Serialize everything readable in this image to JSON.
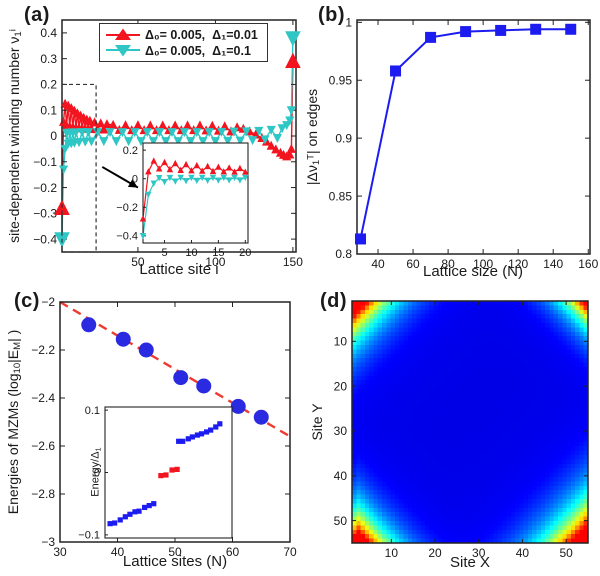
{
  "colors": {
    "red": "#f2141e",
    "cyan": "#2ec7c5",
    "blue": "#1c1cf0",
    "circle_blue": "#2a2ae0",
    "trend_red": "#ee3b30",
    "axis": "#222222",
    "text": "#1a1a1a"
  },
  "panels": {
    "a": {
      "label": "(a)",
      "xlabel": "Lattice site i",
      "ylabel": {
        "p1": "site-dependent winding number ν",
        "sub": "1",
        "sup": "i"
      },
      "legend": [
        {
          "text": "Δ₀= 0.005,  Δ₁=0.01",
          "color_key": "red",
          "marker": "triangle-up"
        },
        {
          "text": "Δ₀= 0.005,  Δ₁=0.1",
          "color_key": "cyan",
          "marker": "triangle-down"
        }
      ]
    },
    "b": {
      "label": "(b)",
      "xlabel": "Lattice size (N)",
      "ylabel": {
        "p1": "|Δν",
        "sub": "1",
        "sup": "T",
        "p2": "| on edges"
      }
    },
    "c": {
      "label": "(c)",
      "xlabel": "Lattice sites (N)",
      "ylabel": {
        "p1": "Energies of MZMs (log",
        "sub1": "10",
        "p2": "|E",
        "sub2": "M",
        "p3": "| )"
      },
      "inset_ylabel": {
        "p1": "Energy/Δ",
        "sub": "1"
      }
    },
    "d": {
      "label": "(d)",
      "xlabel": "Site X",
      "ylabel": "Site Y"
    }
  },
  "chart_data": [
    {
      "id": "a_main",
      "type": "line",
      "xlabel": "Lattice site i",
      "ylabel": "site-dependent winding number nu_1^i",
      "xlim": [
        1,
        152
      ],
      "ylim": [
        -0.45,
        0.45
      ],
      "xticks": [
        50,
        100,
        150
      ],
      "xtick_labels": [
        "50",
        "100",
        "150"
      ],
      "yticks": [
        -0.4,
        -0.3,
        -0.2,
        -0.1,
        0,
        0.1,
        0.2,
        0.3,
        0.4
      ],
      "ytick_labels": [
        "−0.4",
        "−0.3",
        "−0.2",
        "−0.1",
        "0",
        "0.1",
        "0.2",
        "0.3",
        "0.4"
      ],
      "series": [
        {
          "name": "Δ₀= 0.005, Δ₁=0.01",
          "color": "#f2141e",
          "marker": "triangle-up",
          "emphasize_ends": true,
          "x": [
            1,
            2,
            3,
            4,
            5,
            6,
            7,
            8,
            9,
            10,
            11,
            12,
            13,
            14,
            15,
            16,
            17,
            18,
            19,
            20,
            22,
            24,
            26,
            28,
            30,
            34,
            38,
            42,
            46,
            50,
            54,
            58,
            62,
            66,
            70,
            74,
            78,
            82,
            86,
            90,
            94,
            98,
            102,
            106,
            110,
            114,
            118,
            122,
            126,
            130,
            133,
            136,
            139,
            142,
            144,
            146,
            148,
            149,
            150
          ],
          "y": [
            -0.28,
            0.055,
            0.125,
            0.04,
            0.118,
            0.036,
            0.108,
            0.034,
            0.098,
            0.032,
            0.088,
            0.031,
            0.079,
            0.03,
            0.071,
            0.029,
            0.064,
            0.028,
            0.059,
            0.027,
            0.053,
            0.026,
            0.049,
            0.025,
            0.046,
            0.043,
            0.024,
            0.042,
            0.023,
            0.042,
            0.023,
            0.041,
            0.023,
            0.041,
            0.023,
            0.041,
            0.023,
            0.041,
            0.023,
            0.041,
            0.022,
            0.04,
            0.021,
            0.038,
            0.018,
            0.034,
            0.028,
            0.018,
            0.006,
            -0.008,
            -0.022,
            -0.038,
            -0.052,
            -0.065,
            -0.073,
            -0.079,
            -0.072,
            -0.05,
            0.29
          ]
        },
        {
          "name": "Δ₀= 0.005, Δ₁=0.1",
          "color": "#2ec7c5",
          "marker": "triangle-down",
          "emphasize_ends": true,
          "x": [
            1,
            2,
            3,
            4,
            5,
            6,
            7,
            8,
            9,
            10,
            12,
            14,
            16,
            18,
            20,
            24,
            28,
            32,
            36,
            40,
            44,
            48,
            52,
            56,
            60,
            64,
            68,
            72,
            76,
            80,
            84,
            88,
            92,
            96,
            100,
            104,
            108,
            112,
            116,
            120,
            124,
            128,
            132,
            136,
            140,
            143,
            146,
            148,
            149,
            150
          ],
          "y": [
            -0.4,
            -0.13,
            -0.05,
            0.012,
            -0.03,
            0.013,
            -0.028,
            0.014,
            -0.026,
            0.014,
            -0.024,
            0.015,
            -0.022,
            0.015,
            -0.021,
            0.015,
            -0.02,
            0.015,
            -0.02,
            0.015,
            -0.02,
            0.015,
            -0.02,
            0.015,
            -0.02,
            0.015,
            -0.02,
            0.015,
            -0.02,
            0.015,
            -0.02,
            0.015,
            -0.02,
            0.015,
            -0.02,
            0.016,
            -0.019,
            0.017,
            -0.018,
            0.018,
            -0.016,
            0.02,
            -0.013,
            0.024,
            -0.008,
            0.03,
            0.042,
            0.06,
            0.1,
            0.38
          ]
        }
      ],
      "annotations": {
        "dash_rect": {
          "x0": 1,
          "x1": 23,
          "y0": -0.45,
          "y1": 0.2
        },
        "arrow": {
          "x1": 27,
          "y1": -0.12,
          "x2": 50,
          "y2": -0.2
        }
      }
    },
    {
      "id": "a_inset",
      "type": "line",
      "xlim": [
        1,
        20.5
      ],
      "ylim": [
        -0.45,
        0.25
      ],
      "xticks": [
        5,
        10,
        15,
        20
      ],
      "xtick_labels": [
        "5",
        "10",
        "15",
        "20"
      ],
      "yticks": [
        -0.4,
        -0.2,
        0,
        0.2
      ],
      "ytick_labels": [
        "−0.4",
        "−0.2",
        "0",
        "0.2"
      ],
      "series": [
        {
          "name": "Δ₀= 0.005, Δ₁=0.01 (zoom)",
          "color": "#f2141e",
          "marker": "triangle-up",
          "x": [
            1,
            2,
            3,
            4,
            5,
            6,
            7,
            8,
            9,
            10,
            11,
            12,
            13,
            14,
            15,
            16,
            17,
            18,
            19,
            20
          ],
          "y": [
            -0.28,
            0.05,
            0.125,
            0.07,
            0.115,
            0.065,
            0.107,
            0.06,
            0.1,
            0.057,
            0.093,
            0.054,
            0.087,
            0.052,
            0.082,
            0.05,
            0.077,
            0.048,
            0.073,
            0.047
          ]
        },
        {
          "name": "Δ₀= 0.005, Δ₁=0.1 (zoom)",
          "color": "#2ec7c5",
          "marker": "triangle-down",
          "x": [
            1,
            2,
            3,
            4,
            5,
            6,
            7,
            8,
            9,
            10,
            11,
            12,
            13,
            14,
            15,
            16,
            17,
            18,
            19,
            20
          ],
          "y": [
            -0.4,
            -0.11,
            -0.032,
            0.006,
            -0.022,
            0.007,
            -0.018,
            0.008,
            -0.015,
            0.008,
            -0.013,
            0.008,
            -0.012,
            0.008,
            -0.011,
            0.008,
            -0.01,
            0.008,
            -0.01,
            0.008
          ]
        }
      ]
    },
    {
      "id": "b",
      "type": "line",
      "xlabel": "Lattice size (N)",
      "ylabel": "|Δν₁ᵀ| on edges",
      "xlim": [
        28,
        161
      ],
      "ylim": [
        0.8,
        1.002
      ],
      "xticks": [
        40,
        60,
        80,
        100,
        120,
        140,
        160
      ],
      "xtick_labels": [
        "40",
        "60",
        "80",
        "100",
        "120",
        "140",
        "160"
      ],
      "yticks": [
        0.8,
        0.85,
        0.9,
        0.95,
        1
      ],
      "ytick_labels": [
        "0.8",
        "0.85",
        "0.9",
        "0.95",
        "1"
      ],
      "series": [
        {
          "name": "|Δν₁ᵀ| on edges",
          "color": "#1c1cf0",
          "marker": "square",
          "x": [
            30,
            50,
            70,
            90,
            110,
            130,
            150
          ],
          "y": [
            0.813,
            0.958,
            0.987,
            0.992,
            0.993,
            0.994,
            0.994
          ]
        }
      ]
    },
    {
      "id": "c",
      "type": "scatter",
      "xlabel": "Lattice sites (N)",
      "ylabel": "Energies of MZMs (log10|EM| )",
      "xlim": [
        30,
        70
      ],
      "ylim": [
        -3,
        -2
      ],
      "xticks": [
        30,
        40,
        50,
        60,
        70
      ],
      "xtick_labels": [
        "30",
        "40",
        "50",
        "60",
        "70"
      ],
      "yticks": [
        -3,
        -2.8,
        -2.6,
        -2.4,
        -2.2,
        -2
      ],
      "ytick_labels": [
        "−3",
        "−2.8",
        "−2.6",
        "−2.4",
        "−2.2",
        "−2"
      ],
      "series": [
        {
          "name": "MZM energies",
          "color": "#2a2ae0",
          "marker": "circle",
          "size": 7.5,
          "x": [
            35,
            41,
            45,
            51,
            55,
            61,
            65
          ],
          "y": [
            -2.095,
            -2.155,
            -2.2,
            -2.315,
            -2.35,
            -2.435,
            -2.48
          ]
        }
      ],
      "trend_line": {
        "color": "#ee3b30",
        "style": "dashed",
        "x": [
          30,
          70
        ],
        "y": [
          -2.0,
          -2.56
        ]
      }
    },
    {
      "id": "c_inset",
      "type": "scatter",
      "ylabel": "Energy/Δ₁",
      "xlim": [
        0,
        25
      ],
      "ylim": [
        -0.105,
        0.105
      ],
      "xticks": [],
      "yticks": [
        -0.1,
        0,
        0.1
      ],
      "ytick_labels": [
        "−0.1",
        "0",
        "0.1"
      ],
      "series": [
        {
          "name": "bulk states",
          "color": "#1c1cf0",
          "marker": "square",
          "size": 2.6,
          "x": [
            1,
            1.9,
            3,
            4,
            4.9,
            5.9,
            6.7,
            7.8,
            8.7,
            9.6,
            14.5,
            15.3,
            16.4,
            17.2,
            18.2,
            19,
            20,
            20.8,
            21.8,
            22.6
          ],
          "y": [
            -0.082,
            -0.081,
            -0.076,
            -0.071,
            -0.067,
            -0.063,
            -0.062,
            -0.056,
            -0.053,
            -0.05,
            0.05,
            0.05,
            0.054,
            0.057,
            0.06,
            0.062,
            0.065,
            0.068,
            0.073,
            0.078
          ]
        },
        {
          "name": "Majorana zero modes",
          "color": "#f2141e",
          "marker": "square",
          "size": 2.6,
          "x": [
            11,
            12,
            13.2,
            14.2
          ],
          "y": [
            -0.005,
            -0.004,
            0.004,
            0.005
          ]
        }
      ]
    },
    {
      "id": "d",
      "type": "heatmap",
      "xlabel": "Site X",
      "ylabel": "Site Y",
      "xlim": [
        1,
        55
      ],
      "ylim": [
        1,
        55
      ],
      "y_reversed": true,
      "xticks": [
        10,
        20,
        30,
        40,
        50
      ],
      "xtick_labels": [
        "10",
        "20",
        "30",
        "40",
        "50"
      ],
      "yticks": [
        10,
        20,
        30,
        40,
        50
      ],
      "ytick_labels": [
        "10",
        "20",
        "30",
        "40",
        "50"
      ],
      "grid_size": [
        55,
        55
      ],
      "colormap": "jet",
      "description": "Probability density of Majorana zero modes localized at the four corners of the lattice; blue bulk, red/yellow corner hotspots",
      "corner_peaks": [
        {
          "x": 1,
          "y": 1,
          "amp": 1.6,
          "decay": 3.8
        },
        {
          "x": 55,
          "y": 1,
          "amp": 0.95,
          "decay": 3.0
        },
        {
          "x": 2,
          "y": 55,
          "amp": 1.45,
          "decay": 3.6
        },
        {
          "x": 55,
          "y": 55,
          "amp": 1.75,
          "decay": 4.3
        }
      ],
      "background_value": 0
    }
  ]
}
